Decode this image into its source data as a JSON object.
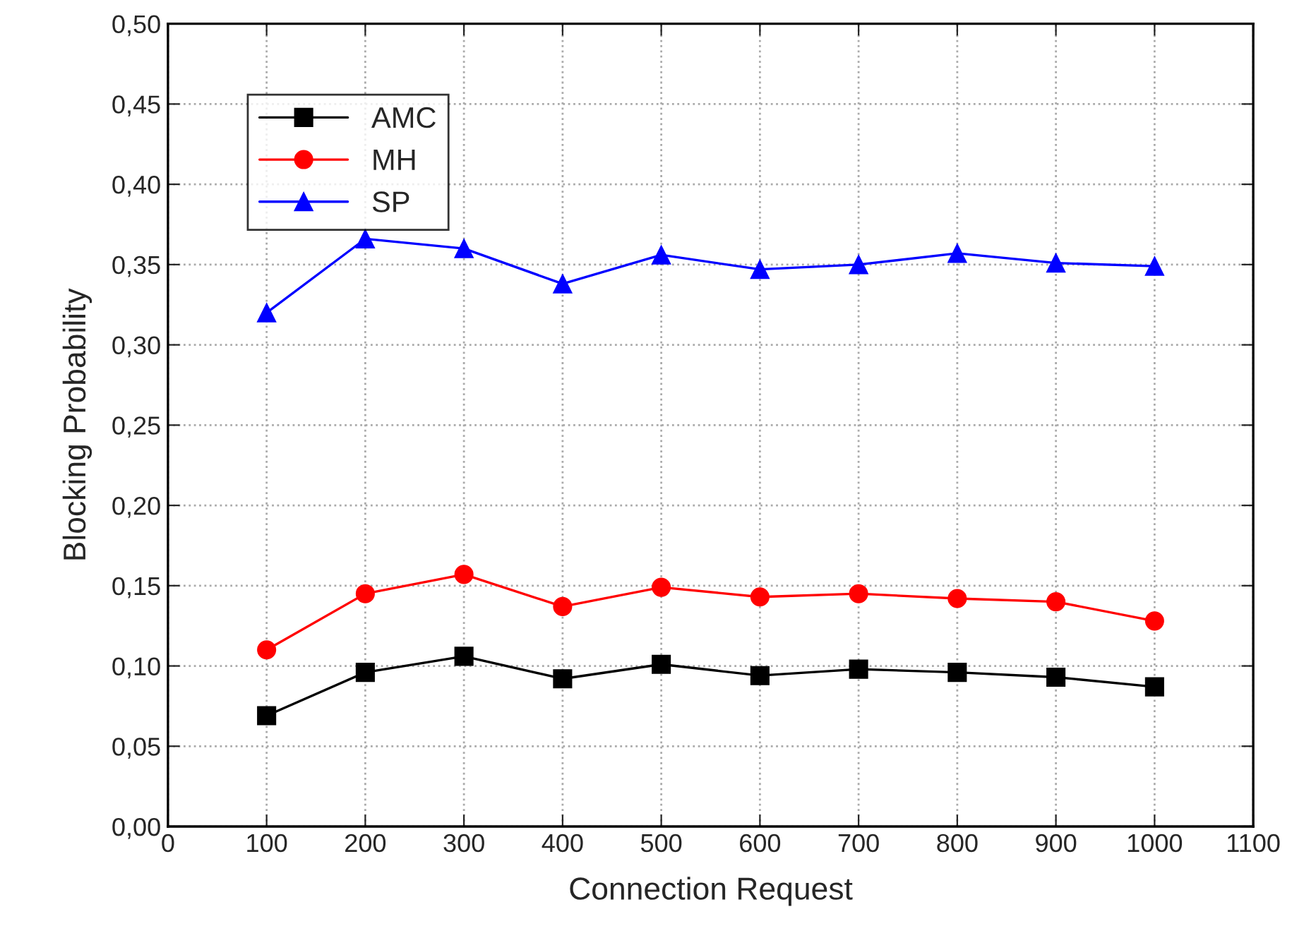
{
  "chart_data": {
    "type": "line",
    "xlabel": "Connection Request",
    "ylabel": "Blocking Probability",
    "x": [
      100,
      200,
      300,
      400,
      500,
      600,
      700,
      800,
      900,
      1000
    ],
    "series": [
      {
        "name": "AMC",
        "color": "#000000",
        "marker": "square",
        "values": [
          0.069,
          0.096,
          0.106,
          0.092,
          0.101,
          0.094,
          0.098,
          0.096,
          0.093,
          0.087
        ]
      },
      {
        "name": "MH",
        "color": "#ff0000",
        "marker": "circle",
        "values": [
          0.11,
          0.145,
          0.157,
          0.137,
          0.149,
          0.143,
          0.145,
          0.142,
          0.14,
          0.128
        ]
      },
      {
        "name": "SP",
        "color": "#0000ff",
        "marker": "triangle",
        "values": [
          0.32,
          0.366,
          0.36,
          0.338,
          0.356,
          0.347,
          0.35,
          0.357,
          0.351,
          0.349
        ]
      }
    ],
    "xlim": [
      0,
      1100
    ],
    "xticks": [
      0,
      100,
      200,
      300,
      400,
      500,
      600,
      700,
      800,
      900,
      1000,
      1100
    ],
    "ylim": [
      0,
      0.5
    ],
    "yticks": [
      {
        "value": 0,
        "label": "0,00"
      },
      {
        "value": 0.05,
        "label": "0,05"
      },
      {
        "value": 0.1,
        "label": "0,10"
      },
      {
        "value": 0.15,
        "label": "0,15"
      },
      {
        "value": 0.2,
        "label": "0,20"
      },
      {
        "value": 0.25,
        "label": "0,25"
      },
      {
        "value": 0.3,
        "label": "0,30"
      },
      {
        "value": 0.35,
        "label": "0,35"
      },
      {
        "value": 0.4,
        "label": "0,40"
      },
      {
        "value": 0.45,
        "label": "0,45"
      },
      {
        "value": 0.5,
        "label": "0,50"
      }
    ],
    "grid": true,
    "legend": "top left",
    "line_style": "solid"
  }
}
